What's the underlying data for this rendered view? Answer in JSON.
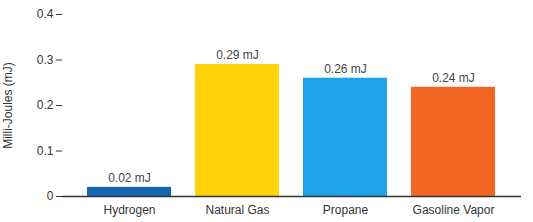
{
  "chart_data": {
    "type": "bar",
    "ylabel": "Milli-Joules (mJ)",
    "categories": [
      "Hydrogen",
      "Natural Gas",
      "Propane",
      "Gasoline Vapor"
    ],
    "values": [
      0.02,
      0.29,
      0.26,
      0.24
    ],
    "value_labels": [
      "0.02 mJ",
      "0.29 mJ",
      "0.26 mJ",
      "0.24 mJ"
    ],
    "colors": [
      "#1565b4",
      "#ffd20a",
      "#1ea3e8",
      "#f26522"
    ],
    "ylim": [
      0,
      0.4
    ],
    "yticks": [
      0,
      0.1,
      0.2,
      0.3,
      0.4
    ],
    "data_labels": true,
    "grid": false
  }
}
